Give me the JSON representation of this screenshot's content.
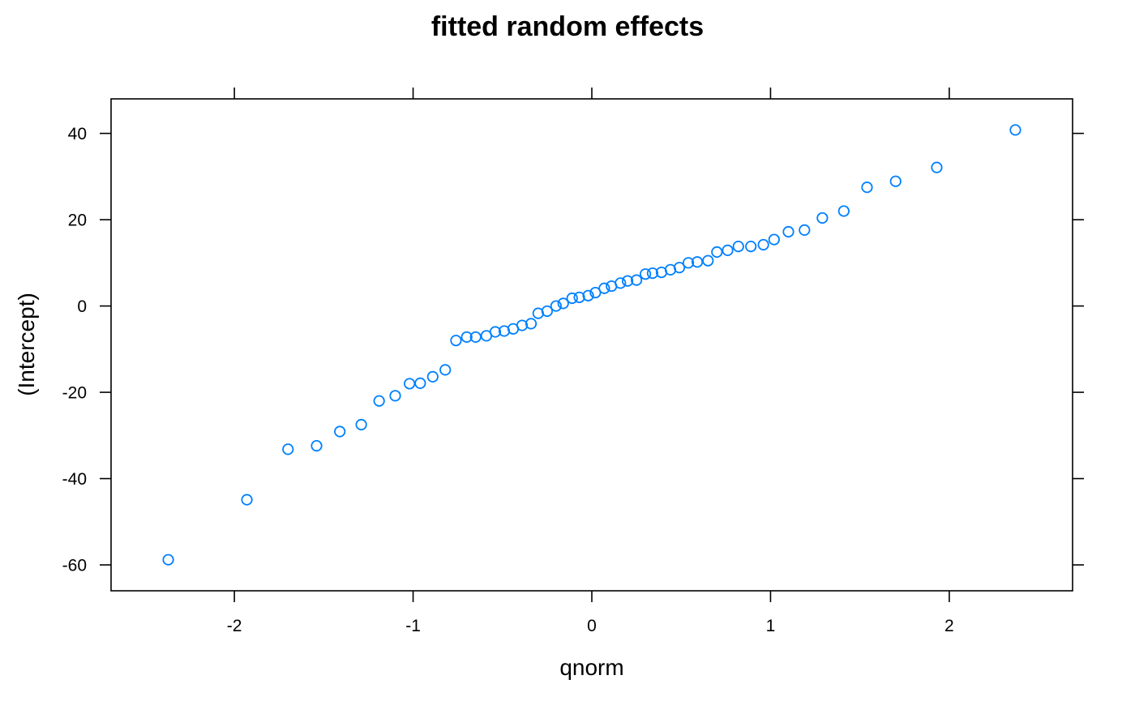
{
  "chart_data": {
    "type": "scatter",
    "title": "fitted random effects",
    "xlabel": "qnorm",
    "ylabel": "(Intercept)",
    "xlim": [
      -2.69,
      2.69
    ],
    "ylim": [
      -66.0,
      48.0
    ],
    "x_ticks": [
      -2,
      -1,
      0,
      1,
      2
    ],
    "y_ticks": [
      -60,
      -40,
      -20,
      0,
      20,
      40
    ],
    "grid": false,
    "legend": "none",
    "marker": "open-circle",
    "point_color": "#0080ff",
    "points": [
      {
        "x": -2.37,
        "y": -58.8
      },
      {
        "x": -1.93,
        "y": -44.9
      },
      {
        "x": -1.7,
        "y": -33.2
      },
      {
        "x": -1.54,
        "y": -32.4
      },
      {
        "x": -1.41,
        "y": -29.1
      },
      {
        "x": -1.29,
        "y": -27.5
      },
      {
        "x": -1.19,
        "y": -22.0
      },
      {
        "x": -1.1,
        "y": -20.8
      },
      {
        "x": -1.02,
        "y": -18.0
      },
      {
        "x": -0.96,
        "y": -17.9
      },
      {
        "x": -0.89,
        "y": -16.4
      },
      {
        "x": -0.82,
        "y": -14.8
      },
      {
        "x": -0.76,
        "y": -8.0
      },
      {
        "x": -0.7,
        "y": -7.2
      },
      {
        "x": -0.65,
        "y": -7.2
      },
      {
        "x": -0.59,
        "y": -6.9
      },
      {
        "x": -0.54,
        "y": -6.0
      },
      {
        "x": -0.49,
        "y": -5.8
      },
      {
        "x": -0.44,
        "y": -5.3
      },
      {
        "x": -0.39,
        "y": -4.5
      },
      {
        "x": -0.34,
        "y": -4.1
      },
      {
        "x": -0.3,
        "y": -1.7
      },
      {
        "x": -0.25,
        "y": -1.2
      },
      {
        "x": -0.2,
        "y": 0.0
      },
      {
        "x": -0.16,
        "y": 0.6
      },
      {
        "x": -0.11,
        "y": 1.8
      },
      {
        "x": -0.07,
        "y": 2.0
      },
      {
        "x": -0.02,
        "y": 2.4
      },
      {
        "x": 0.02,
        "y": 3.1
      },
      {
        "x": 0.07,
        "y": 4.1
      },
      {
        "x": 0.11,
        "y": 4.6
      },
      {
        "x": 0.16,
        "y": 5.3
      },
      {
        "x": 0.2,
        "y": 5.8
      },
      {
        "x": 0.25,
        "y": 6.0
      },
      {
        "x": 0.3,
        "y": 7.4
      },
      {
        "x": 0.34,
        "y": 7.6
      },
      {
        "x": 0.39,
        "y": 7.8
      },
      {
        "x": 0.44,
        "y": 8.4
      },
      {
        "x": 0.49,
        "y": 8.9
      },
      {
        "x": 0.54,
        "y": 10.0
      },
      {
        "x": 0.59,
        "y": 10.2
      },
      {
        "x": 0.65,
        "y": 10.5
      },
      {
        "x": 0.7,
        "y": 12.5
      },
      {
        "x": 0.76,
        "y": 12.9
      },
      {
        "x": 0.82,
        "y": 13.8
      },
      {
        "x": 0.89,
        "y": 13.8
      },
      {
        "x": 0.96,
        "y": 14.2
      },
      {
        "x": 1.02,
        "y": 15.4
      },
      {
        "x": 1.1,
        "y": 17.2
      },
      {
        "x": 1.19,
        "y": 17.6
      },
      {
        "x": 1.29,
        "y": 20.4
      },
      {
        "x": 1.41,
        "y": 22.0
      },
      {
        "x": 1.54,
        "y": 27.5
      },
      {
        "x": 1.7,
        "y": 28.9
      },
      {
        "x": 1.93,
        "y": 32.1
      },
      {
        "x": 2.37,
        "y": 40.8
      }
    ]
  }
}
